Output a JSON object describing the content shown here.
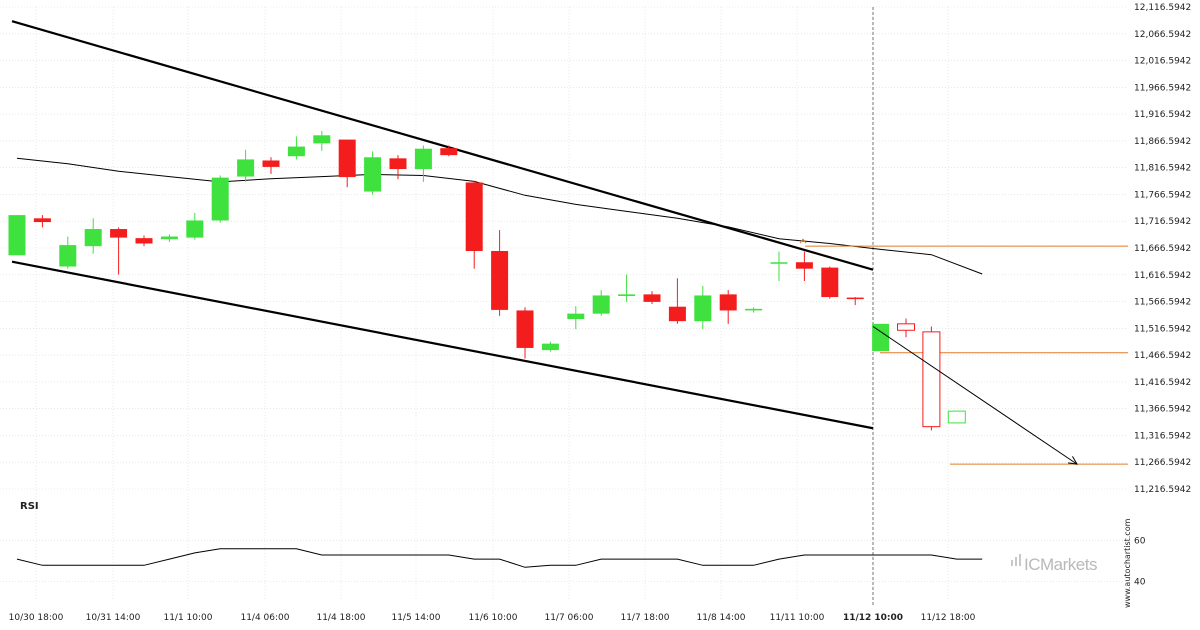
{
  "chart_data": {
    "type": "candlestick",
    "x_tick_labels": [
      "10/30 18:00",
      "10/31 14:00",
      "11/1 10:00",
      "11/4 06:00",
      "11/4 18:00",
      "11/5 14:00",
      "11/6 10:00",
      "11/7 06:00",
      "11/7 18:00",
      "11/8 14:00",
      "11/11 10:00",
      "11/12 10:00",
      "11/12 18:00"
    ],
    "highlight_x_label": "11/12 10:00",
    "y_tick_labels": [
      "12,116.5942",
      "12,066.5942",
      "12,016.5942",
      "11,966.5942",
      "11,916.5942",
      "11,866.5942",
      "11,816.5942",
      "11,766.5942",
      "11,716.5942",
      "11,666.5942",
      "11,616.5942",
      "11,566.5942",
      "11,516.5942",
      "11,466.5942",
      "11,416.5942",
      "11,366.5942",
      "11,316.5942",
      "11,266.5942",
      "11,216.5942"
    ],
    "ylim": [
      11216.5942,
      12116.5942
    ],
    "candles": [
      {
        "i": 0,
        "o": 11653,
        "h": 11728,
        "l": 11653,
        "c": 11728
      },
      {
        "i": 1,
        "o": 11722,
        "h": 11728,
        "l": 11705,
        "c": 11715
      },
      {
        "i": 2,
        "o": 11632,
        "h": 11688,
        "l": 11628,
        "c": 11672
      },
      {
        "i": 3,
        "o": 11670,
        "h": 11722,
        "l": 11656,
        "c": 11702
      },
      {
        "i": 4,
        "o": 11702,
        "h": 11705,
        "l": 11617,
        "c": 11686
      },
      {
        "i": 5,
        "o": 11685,
        "h": 11690,
        "l": 11670,
        "c": 11675
      },
      {
        "i": 6,
        "o": 11683,
        "h": 11692,
        "l": 11678,
        "c": 11688
      },
      {
        "i": 7,
        "o": 11686,
        "h": 11732,
        "l": 11682,
        "c": 11718
      },
      {
        "i": 8,
        "o": 11718,
        "h": 11802,
        "l": 11714,
        "c": 11798
      },
      {
        "i": 9,
        "o": 11800,
        "h": 11850,
        "l": 11790,
        "c": 11832
      },
      {
        "i": 10,
        "o": 11830,
        "h": 11836,
        "l": 11805,
        "c": 11818
      },
      {
        "i": 11,
        "o": 11838,
        "h": 11875,
        "l": 11832,
        "c": 11856
      },
      {
        "i": 12,
        "o": 11862,
        "h": 11885,
        "l": 11848,
        "c": 11877
      },
      {
        "i": 13,
        "o": 11869,
        "h": 11869,
        "l": 11780,
        "c": 11799
      },
      {
        "i": 14,
        "o": 11772,
        "h": 11847,
        "l": 11766,
        "c": 11836
      },
      {
        "i": 15,
        "o": 11834,
        "h": 11840,
        "l": 11795,
        "c": 11814
      },
      {
        "i": 16,
        "o": 11814,
        "h": 11858,
        "l": 11790,
        "c": 11852
      },
      {
        "i": 17,
        "o": 11853,
        "h": 11858,
        "l": 11838,
        "c": 11840
      },
      {
        "i": 18,
        "o": 11789,
        "h": 11792,
        "l": 11628,
        "c": 11661
      },
      {
        "i": 19,
        "o": 11661,
        "h": 11700,
        "l": 11540,
        "c": 11551
      },
      {
        "i": 20,
        "o": 11550,
        "h": 11556,
        "l": 11460,
        "c": 11480
      },
      {
        "i": 21,
        "o": 11476,
        "h": 11492,
        "l": 11473,
        "c": 11488
      },
      {
        "i": 22,
        "o": 11534,
        "h": 11558,
        "l": 11515,
        "c": 11544
      },
      {
        "i": 23,
        "o": 11544,
        "h": 11588,
        "l": 11540,
        "c": 11578
      },
      {
        "i": 24,
        "o": 11577,
        "h": 11617,
        "l": 11566,
        "c": 11580
      },
      {
        "i": 25,
        "o": 11580,
        "h": 11586,
        "l": 11562,
        "c": 11566
      },
      {
        "i": 26,
        "o": 11557,
        "h": 11610,
        "l": 11525,
        "c": 11530
      },
      {
        "i": 27,
        "o": 11530,
        "h": 11596,
        "l": 11515,
        "c": 11578
      },
      {
        "i": 28,
        "o": 11580,
        "h": 11588,
        "l": 11525,
        "c": 11550
      },
      {
        "i": 29,
        "o": 11550,
        "h": 11556,
        "l": 11546,
        "c": 11553
      },
      {
        "i": 30,
        "o": 11640,
        "h": 11660,
        "l": 11605,
        "c": 11640
      },
      {
        "i": 31,
        "o": 11640,
        "h": 11660,
        "l": 11605,
        "c": 11628
      },
      {
        "i": 32,
        "o": 11630,
        "h": 11632,
        "l": 11572,
        "c": 11575
      },
      {
        "i": 33,
        "o": 11574,
        "h": 11575,
        "l": 11560,
        "c": 11572
      },
      {
        "i": 34,
        "o": 11474,
        "h": 11525,
        "l": 11474,
        "c": 11525
      }
    ],
    "hollow_candles": [
      {
        "i": 35,
        "o": 11525,
        "h": 11535,
        "l": 11500,
        "c": 11513,
        "dir": "down"
      },
      {
        "i": 36,
        "o": 11510,
        "h": 11520,
        "l": 11326,
        "c": 11333,
        "dir": "down"
      },
      {
        "i": 37,
        "o": 11340,
        "h": 11362,
        "l": 11340,
        "c": 11362,
        "dir": "up"
      }
    ],
    "moving_average": [
      [
        0,
        11834
      ],
      [
        2,
        11824
      ],
      [
        4,
        11810
      ],
      [
        6,
        11800
      ],
      [
        8,
        11790
      ],
      [
        10,
        11796
      ],
      [
        12,
        11800
      ],
      [
        14,
        11804
      ],
      [
        16,
        11802
      ],
      [
        18,
        11791
      ],
      [
        20,
        11765
      ],
      [
        22,
        11748
      ],
      [
        24,
        11735
      ],
      [
        26,
        11722
      ],
      [
        28,
        11706
      ],
      [
        30,
        11684
      ],
      [
        32,
        11675
      ],
      [
        34,
        11664
      ],
      [
        36,
        11654
      ],
      [
        38,
        11618
      ]
    ],
    "channel_upper": [
      [
        0,
        12090
      ],
      [
        34,
        11626
      ]
    ],
    "channel_lower": [
      [
        0,
        11641
      ],
      [
        34,
        11330
      ]
    ],
    "support_levels": [
      11670,
      11471,
      11263
    ],
    "projection_arrow": [
      [
        34,
        11520
      ],
      [
        41,
        11263
      ]
    ],
    "rsi": {
      "label": "RSI",
      "ylim": [
        35,
        70
      ],
      "y_tick_labels": [
        "60",
        "40"
      ],
      "y_tick_values": [
        60,
        40
      ],
      "points": [
        [
          0,
          51
        ],
        [
          1,
          48
        ],
        [
          2,
          48
        ],
        [
          3,
          48
        ],
        [
          4,
          48
        ],
        [
          5,
          48
        ],
        [
          6,
          51
        ],
        [
          7,
          54
        ],
        [
          8,
          56
        ],
        [
          9,
          56
        ],
        [
          10,
          56
        ],
        [
          11,
          56
        ],
        [
          12,
          53
        ],
        [
          13,
          53
        ],
        [
          14,
          53
        ],
        [
          15,
          53
        ],
        [
          16,
          53
        ],
        [
          17,
          53
        ],
        [
          18,
          51
        ],
        [
          19,
          51
        ],
        [
          20,
          47
        ],
        [
          21,
          48
        ],
        [
          22,
          48
        ],
        [
          23,
          51
        ],
        [
          24,
          51
        ],
        [
          25,
          51
        ],
        [
          26,
          51
        ],
        [
          27,
          48
        ],
        [
          28,
          48
        ],
        [
          29,
          48
        ],
        [
          30,
          51
        ],
        [
          31,
          53
        ],
        [
          32,
          53
        ],
        [
          33,
          53
        ],
        [
          34,
          53
        ],
        [
          35,
          53
        ],
        [
          36,
          53
        ],
        [
          37,
          51
        ],
        [
          38,
          51
        ]
      ]
    },
    "colors": {
      "bull": "#3ee13e",
      "bear": "#f41d1d",
      "channel": "#000000",
      "level": "#e07b28",
      "ma": "#000000",
      "grid": "#d9d9d9"
    }
  },
  "watermark": {
    "site": "www.autochartist.com",
    "brand": "ICMarkets"
  }
}
